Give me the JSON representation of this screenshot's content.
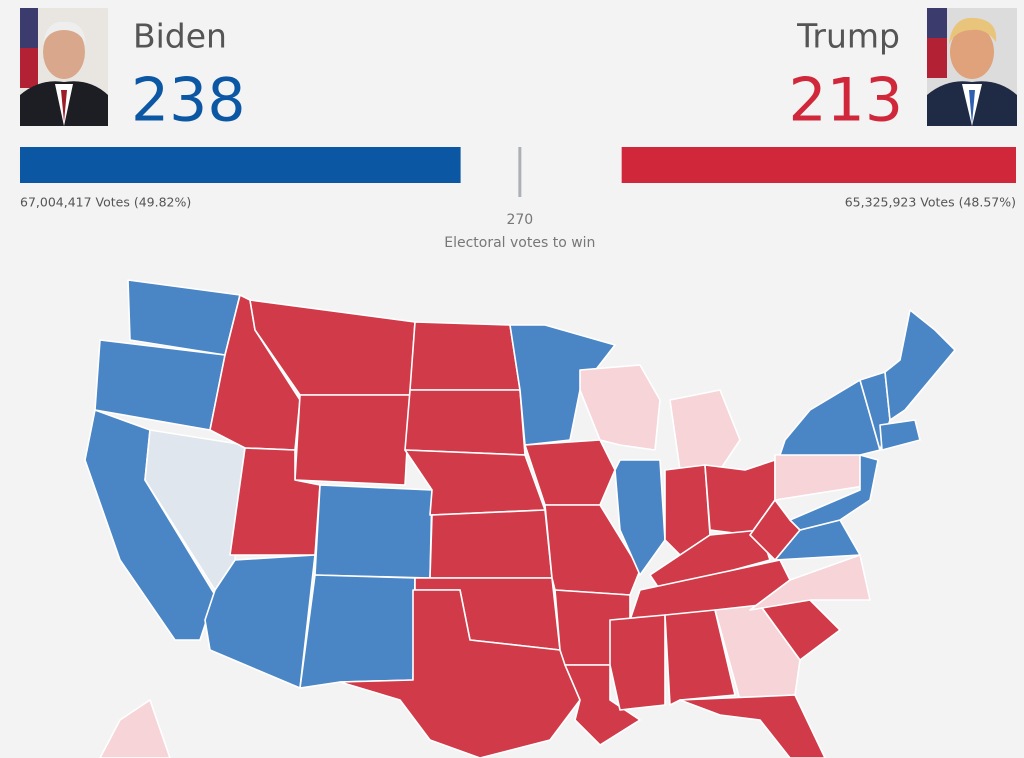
{
  "header": {
    "candidates": [
      {
        "name": "Biden",
        "electoral_votes": 238,
        "popular_votes": "67,004,417 Votes (49.82%)",
        "color": "#0b57a4"
      },
      {
        "name": "Trump",
        "electoral_votes": 213,
        "popular_votes": "65,325,923 Votes (48.57%)",
        "color": "#d0283a"
      }
    ],
    "threshold": {
      "value": 270,
      "label": "Electoral votes to win"
    }
  }
}
